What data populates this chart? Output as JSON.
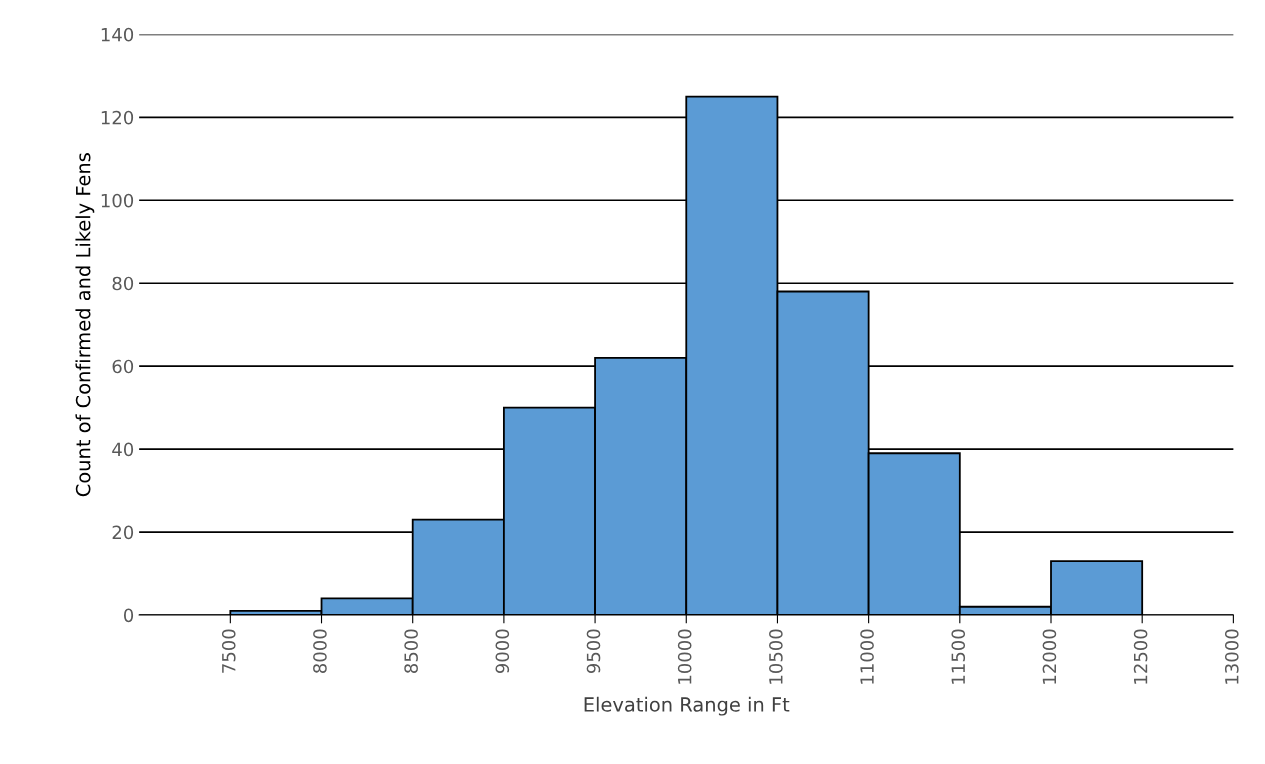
{
  "chart_data": {
    "type": "histogram",
    "xlabel": "Elevation Range in Ft",
    "ylabel": "Count of Confirmed and Likely Fens",
    "bins": [
      7500,
      8000,
      8500,
      9000,
      9500,
      10000,
      10500,
      11000,
      11500,
      12000,
      12500
    ],
    "values": [
      1,
      4,
      23,
      50,
      62,
      125,
      78,
      39,
      2,
      13
    ],
    "color": "#5b9bd5",
    "xlim": [
      7000,
      13000
    ],
    "xticks": [
      7500,
      8000,
      8500,
      9000,
      9500,
      10000,
      10500,
      11000,
      11500,
      12000,
      12500,
      13000
    ],
    "ylim": [
      0,
      140
    ],
    "yticks": [
      0,
      20,
      40,
      60,
      80,
      100,
      120,
      140
    ],
    "grid": "y"
  }
}
